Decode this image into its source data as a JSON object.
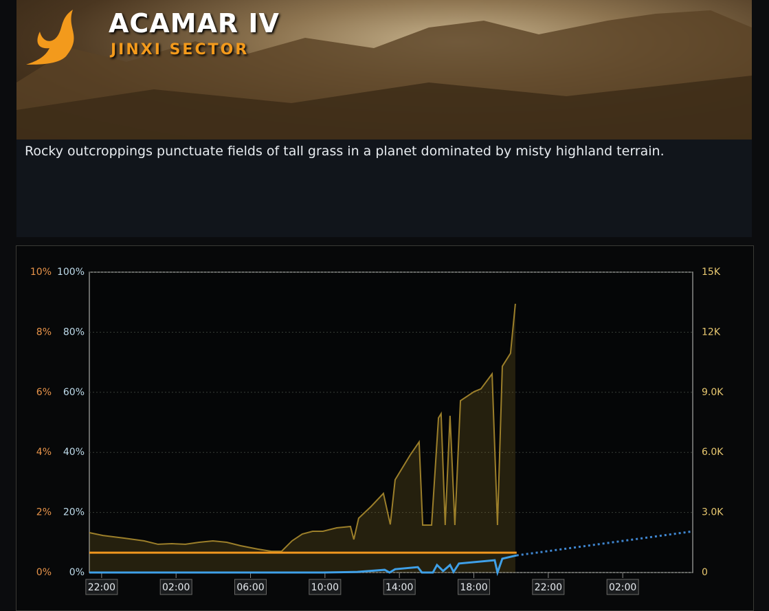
{
  "header": {
    "title": "ACAMAR IV",
    "subtitle": "JINXI SECTOR"
  },
  "description": "Rocky outcroppings punctuate fields of tall grass in a planet dominated by misty highland terrain.",
  "chart_data": {
    "type": "line",
    "xlim": [
      -0.66,
      31.76
    ],
    "xticks": [
      {
        "value": 0,
        "label": "22:00"
      },
      {
        "value": 4,
        "label": "02:00"
      },
      {
        "value": 8,
        "label": "06:00"
      },
      {
        "value": 12,
        "label": "10:00"
      },
      {
        "value": 16,
        "label": "14:00"
      },
      {
        "value": 20,
        "label": "18:00"
      },
      {
        "value": 24,
        "label": "22:00"
      },
      {
        "value": 28,
        "label": "02:00"
      }
    ],
    "ylim": [
      0,
      100
    ],
    "yticks": [
      {
        "value": 0,
        "label": "0%"
      },
      {
        "value": 20,
        "label": "20%"
      },
      {
        "value": 40,
        "label": "40%"
      },
      {
        "value": 60,
        "label": "60%"
      },
      {
        "value": 80,
        "label": "80%"
      },
      {
        "value": 100,
        "label": "100%"
      }
    ],
    "y2lim": [
      0,
      15000
    ],
    "y2ticks": [
      {
        "value": 0,
        "label": "0"
      },
      {
        "value": 3000,
        "label": "3.0K"
      },
      {
        "value": 6000,
        "label": "6.0K"
      },
      {
        "value": 9000,
        "label": "9.0K"
      },
      {
        "value": 12000,
        "label": "12K"
      },
      {
        "value": 15000,
        "label": "15K"
      }
    ],
    "y3lim": [
      0,
      10
    ],
    "y3ticks": [
      {
        "value": 0,
        "label": "0%"
      },
      {
        "value": 2,
        "label": "2%"
      },
      {
        "value": 4,
        "label": "4%"
      },
      {
        "value": 6,
        "label": "6%"
      },
      {
        "value": 8,
        "label": "8%"
      },
      {
        "value": 10,
        "label": "10%"
      }
    ],
    "grid": true,
    "series": [
      {
        "color": "#9c7f2a",
        "axis": "y2",
        "area": true,
        "x": [
          -0.66,
          0.07,
          1.18,
          2.29,
          3.03,
          3.77,
          4.5,
          5.24,
          5.98,
          6.72,
          7.46,
          8.38,
          9.12,
          9.67,
          10.23,
          10.78,
          11.34,
          11.89,
          12.63,
          13.37,
          13.55,
          13.81,
          14.48,
          15.14,
          15.51,
          15.77,
          16.58,
          17.06,
          17.25,
          17.73,
          18.1,
          18.24,
          18.46,
          18.72,
          18.98,
          19.28,
          20.01,
          20.38,
          20.98,
          21.27,
          21.53,
          21.97,
          22.23
        ],
        "values": [
          1990,
          1850,
          1720,
          1580,
          1410,
          1440,
          1410,
          1510,
          1580,
          1510,
          1340,
          1170,
          1060,
          1060,
          1580,
          1920,
          2060,
          2060,
          2230,
          2300,
          1650,
          2710,
          3300,
          3950,
          2400,
          4630,
          5870,
          6520,
          2370,
          2370,
          7720,
          7930,
          2370,
          7830,
          2370,
          8580,
          9030,
          9170,
          9920,
          2370,
          10300,
          10950,
          13420
        ]
      },
      {
        "color": "#f0961e",
        "axis": "y3",
        "x": [
          -0.66,
          22.3
        ],
        "values": [
          0.66,
          0.66
        ]
      },
      {
        "color": "#3fa0e8",
        "axis": "y",
        "x": [
          -0.66,
          11.89,
          13.74,
          15.21,
          15.47,
          15.77,
          16.99,
          17.21,
          17.8,
          18.02,
          18.35,
          18.72,
          18.91,
          19.2,
          21.12,
          21.27,
          21.53,
          22.3
        ],
        "values": [
          0,
          0,
          0.2,
          0.9,
          0,
          1.1,
          1.8,
          0,
          0,
          2.5,
          0.5,
          2.5,
          0.2,
          3.0,
          4.1,
          0,
          4.6,
          5.7
        ]
      },
      {
        "color": "#3f86d0",
        "axis": "y",
        "dashed": true,
        "x": [
          22.3,
          31.76
        ],
        "values": [
          5.7,
          13.7
        ]
      }
    ]
  }
}
